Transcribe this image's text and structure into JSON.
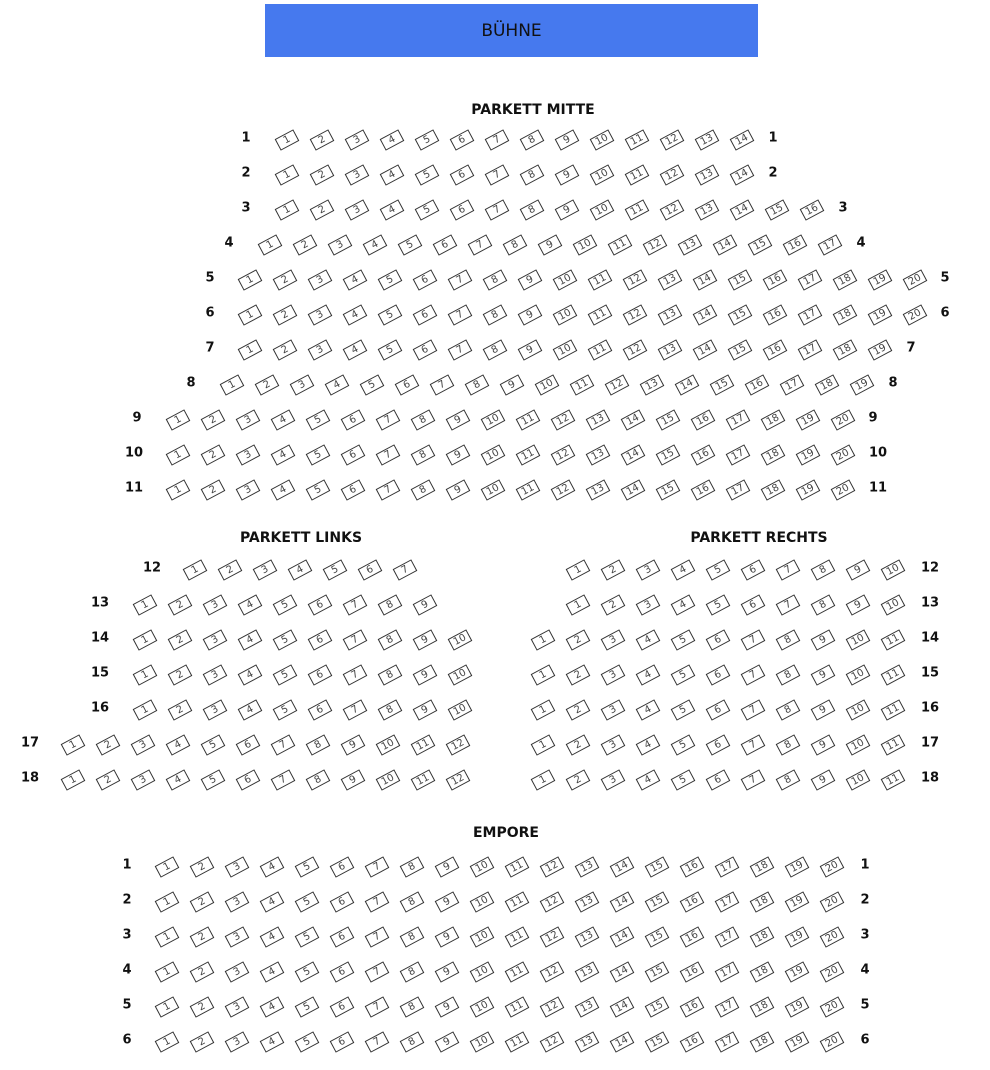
{
  "stage": {
    "label": "BÜHNE",
    "color": "#4679ee"
  },
  "sections": [
    {
      "title": "PARKETT MITTE",
      "rows": [
        {
          "label": "1",
          "seats": 14
        },
        {
          "label": "2",
          "seats": 14
        },
        {
          "label": "3",
          "seats": 16
        },
        {
          "label": "4",
          "seats": 17
        },
        {
          "label": "5",
          "seats": 20
        },
        {
          "label": "6",
          "seats": 20
        },
        {
          "label": "7",
          "seats": 19
        },
        {
          "label": "8",
          "seats": 19
        },
        {
          "label": "9",
          "seats": 20
        },
        {
          "label": "10",
          "seats": 20
        },
        {
          "label": "11",
          "seats": 20
        }
      ]
    },
    {
      "title": "PARKETT LINKS",
      "rows": [
        {
          "label": "12",
          "seats": 7
        },
        {
          "label": "13",
          "seats": 9
        },
        {
          "label": "14",
          "seats": 10
        },
        {
          "label": "15",
          "seats": 10
        },
        {
          "label": "16",
          "seats": 10
        },
        {
          "label": "17",
          "seats": 12
        },
        {
          "label": "18",
          "seats": 12
        }
      ]
    },
    {
      "title": "PARKETT RECHTS",
      "rows": [
        {
          "label": "12",
          "seats": 10
        },
        {
          "label": "13",
          "seats": 10
        },
        {
          "label": "14",
          "seats": 11
        },
        {
          "label": "15",
          "seats": 11
        },
        {
          "label": "16",
          "seats": 11
        },
        {
          "label": "17",
          "seats": 11
        },
        {
          "label": "18",
          "seats": 11
        }
      ]
    },
    {
      "title": "EMPORE",
      "rows": [
        {
          "label": "1",
          "seats": 20
        },
        {
          "label": "2",
          "seats": 20
        },
        {
          "label": "3",
          "seats": 20
        },
        {
          "label": "4",
          "seats": 20
        },
        {
          "label": "5",
          "seats": 20
        },
        {
          "label": "6",
          "seats": 20
        }
      ]
    }
  ]
}
